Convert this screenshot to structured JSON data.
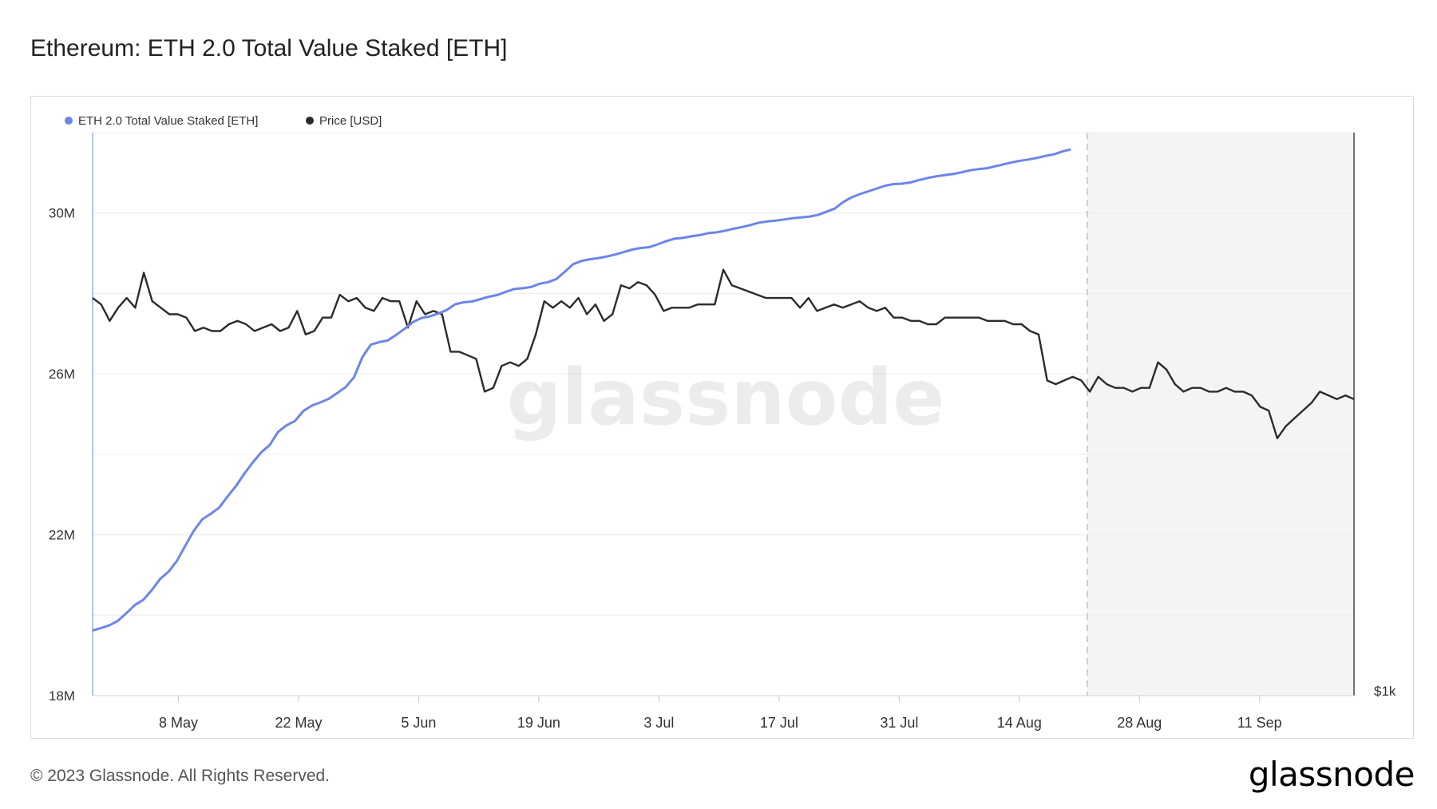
{
  "title": "Ethereum: ETH 2.0 Total Value Staked [ETH]",
  "footer": "© 2023 Glassnode. All Rights Reserved.",
  "brand": "glassnode",
  "watermark": "glassnode",
  "colors": {
    "staked": "#6c86e8",
    "price": "#2b2b2b",
    "future_shade": "#f4f4f4",
    "grid": "#ececec"
  },
  "chart_data": {
    "type": "line",
    "title": "Ethereum: ETH 2.0 Total Value Staked [ETH]",
    "legend": [
      "ETH 2.0 Total Value Staked [ETH]",
      "Price [USD]"
    ],
    "legend_position": "top-left",
    "grid": true,
    "x_ticks": [
      "8 May",
      "22 May",
      "5 Jun",
      "19 Jun",
      "3 Jul",
      "17 Jul",
      "31 Jul",
      "14 Aug",
      "28 Aug",
      "11 Sep"
    ],
    "x_range": [
      "2023-04-28",
      "2023-09-22"
    ],
    "y_left": {
      "ticks": [
        "18M",
        "22M",
        "26M",
        "30M"
      ],
      "range": [
        18000000,
        32000000
      ]
    },
    "y_right": {
      "ticks": [
        "$1k"
      ],
      "scale": "log",
      "range": [
        1000,
        2500
      ]
    },
    "series": [
      {
        "name": "ETH 2.0 Total Value Staked [ETH]",
        "axis": "left",
        "x_start": "2023-04-28",
        "x_end": "2023-08-20",
        "values": [
          19620000,
          19680000,
          19750000,
          19860000,
          20050000,
          20250000,
          20380000,
          20620000,
          20900000,
          21080000,
          21350000,
          21730000,
          22100000,
          22380000,
          22520000,
          22670000,
          22950000,
          23210000,
          23520000,
          23800000,
          24050000,
          24230000,
          24560000,
          24720000,
          24830000,
          25080000,
          25210000,
          25290000,
          25380000,
          25520000,
          25670000,
          25920000,
          26420000,
          26730000,
          26790000,
          26830000,
          26970000,
          27120000,
          27290000,
          27390000,
          27430000,
          27500000,
          27590000,
          27730000,
          27780000,
          27800000,
          27860000,
          27920000,
          27960000,
          28040000,
          28110000,
          28130000,
          28160000,
          28240000,
          28280000,
          28360000,
          28540000,
          28730000,
          28810000,
          28850000,
          28880000,
          28920000,
          28970000,
          29030000,
          29090000,
          29130000,
          29150000,
          29220000,
          29300000,
          29360000,
          29380000,
          29420000,
          29450000,
          29500000,
          29520000,
          29560000,
          29610000,
          29650000,
          29700000,
          29760000,
          29790000,
          29810000,
          29840000,
          29870000,
          29890000,
          29910000,
          29950000,
          30030000,
          30110000,
          30270000,
          30390000,
          30470000,
          30540000,
          30610000,
          30680000,
          30720000,
          30730000,
          30760000,
          30820000,
          30870000,
          30910000,
          30940000,
          30970000,
          31010000,
          31060000,
          31090000,
          31110000,
          31160000,
          31210000,
          31260000,
          31300000,
          31330000,
          31370000,
          31420000,
          31460000,
          31530000,
          31580000
        ]
      },
      {
        "name": "Price [USD]",
        "axis": "right",
        "x_start": "2023-04-28",
        "x_end": "2023-09-22",
        "values": [
          1910,
          1890,
          1840,
          1880,
          1910,
          1880,
          1990,
          1900,
          1880,
          1860,
          1860,
          1850,
          1810,
          1820,
          1810,
          1810,
          1830,
          1840,
          1830,
          1810,
          1820,
          1830,
          1810,
          1820,
          1870,
          1800,
          1810,
          1850,
          1850,
          1920,
          1900,
          1910,
          1880,
          1870,
          1910,
          1900,
          1900,
          1820,
          1900,
          1860,
          1870,
          1860,
          1750,
          1750,
          1740,
          1730,
          1640,
          1650,
          1710,
          1720,
          1710,
          1730,
          1800,
          1900,
          1880,
          1900,
          1880,
          1910,
          1860,
          1890,
          1840,
          1860,
          1950,
          1940,
          1960,
          1950,
          1920,
          1870,
          1880,
          1880,
          1880,
          1890,
          1890,
          1890,
          2000,
          1950,
          1940,
          1930,
          1920,
          1910,
          1910,
          1910,
          1910,
          1880,
          1910,
          1870,
          1880,
          1890,
          1880,
          1890,
          1900,
          1880,
          1870,
          1880,
          1850,
          1850,
          1840,
          1840,
          1830,
          1830,
          1850,
          1850,
          1850,
          1850,
          1850,
          1840,
          1840,
          1840,
          1830,
          1830,
          1810,
          1800,
          1670,
          1660,
          1670,
          1680,
          1670,
          1640,
          1680,
          1660,
          1650,
          1650,
          1640,
          1650,
          1650,
          1720,
          1700,
          1660,
          1640,
          1650,
          1650,
          1640,
          1640,
          1650,
          1640,
          1640,
          1630,
          1600,
          1590,
          1520,
          1550,
          1570,
          1590,
          1610,
          1640,
          1630,
          1620,
          1630,
          1620
        ]
      }
    ]
  }
}
